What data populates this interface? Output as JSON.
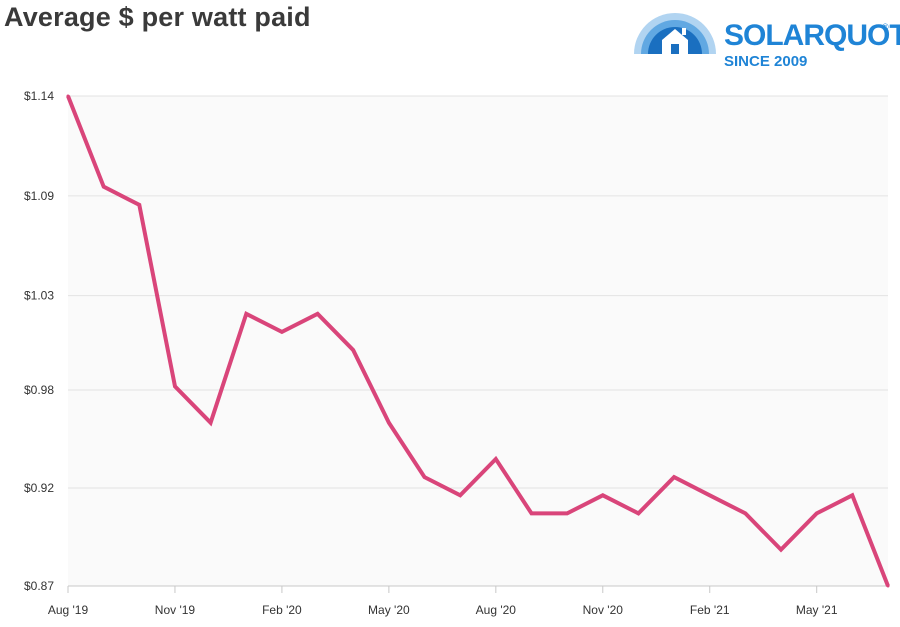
{
  "title": "Average $ per watt paid",
  "logo": {
    "wordmark": "SOLARQUOTES",
    "registered": "®",
    "since": "SINCE 2009",
    "icon": "house-sunrise-icon",
    "color": "#1f84d6"
  },
  "chart_data": {
    "type": "line",
    "title": "Average $ per watt paid",
    "xlabel": "",
    "ylabel": "",
    "ylim": [
      0.87,
      1.14
    ],
    "grid": true,
    "legend": "none",
    "y_ticks": [
      {
        "value": 1.14,
        "label": "$1.14"
      },
      {
        "value": 1.085,
        "label": "$1.09"
      },
      {
        "value": 1.03,
        "label": "$1.03"
      },
      {
        "value": 0.978,
        "label": "$0.98"
      },
      {
        "value": 0.924,
        "label": "$0.92"
      },
      {
        "value": 0.87,
        "label": "$0.87"
      }
    ],
    "x_ticks": [
      {
        "index": 0,
        "label": "Aug '19"
      },
      {
        "index": 3,
        "label": "Nov '19"
      },
      {
        "index": 6,
        "label": "Feb '20"
      },
      {
        "index": 9,
        "label": "May '20"
      },
      {
        "index": 12,
        "label": "Aug '20"
      },
      {
        "index": 15,
        "label": "Nov '20"
      },
      {
        "index": 18,
        "label": "Feb '21"
      },
      {
        "index": 21,
        "label": "May '21"
      }
    ],
    "x": [
      "Aug '19",
      "Sep '19",
      "Oct '19",
      "Nov '19",
      "Dec '19",
      "Jan '20",
      "Feb '20",
      "Mar '20",
      "Apr '20",
      "May '20",
      "Jun '20",
      "Jul '20",
      "Aug '20",
      "Sep '20",
      "Oct '20",
      "Nov '20",
      "Dec '20",
      "Jan '21",
      "Feb '21",
      "Mar '21",
      "Apr '21",
      "May '21",
      "Jun '21",
      "Jul '21"
    ],
    "series": [
      {
        "color": "#d9457a",
        "values": [
          1.14,
          1.09,
          1.08,
          0.98,
          0.96,
          1.02,
          1.01,
          1.02,
          1.0,
          0.96,
          0.93,
          0.92,
          0.94,
          0.91,
          0.91,
          0.92,
          0.91,
          0.93,
          0.92,
          0.91,
          0.89,
          0.91,
          0.92,
          0.87
        ]
      }
    ]
  }
}
